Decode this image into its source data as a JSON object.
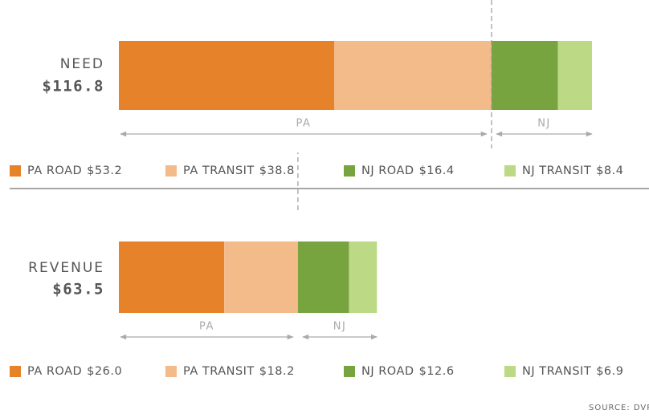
{
  "chart_data": [
    {
      "type": "stacked-bar",
      "title": "NEED",
      "total": 116.8,
      "total_label": "$116.8",
      "groups": [
        "PA",
        "NJ"
      ],
      "series": [
        {
          "name": "PA ROAD",
          "color": "#e5822a",
          "values": [
            53.2
          ],
          "value_labels": [
            "$53.2"
          ]
        },
        {
          "name": "PA TRANSIT",
          "color": "#f4bb8a",
          "values": [
            38.8
          ],
          "value_labels": [
            "$38.8"
          ]
        },
        {
          "name": "NJ ROAD",
          "color": "#78a440",
          "values": [
            16.4
          ],
          "value_labels": [
            "$16.4"
          ]
        },
        {
          "name": "NJ TRANSIT",
          "color": "#bcd985",
          "values": [
            8.4
          ],
          "value_labels": [
            "$8.4"
          ]
        }
      ]
    },
    {
      "type": "stacked-bar",
      "title": "REVENUE",
      "total": 63.5,
      "total_label": "$63.5",
      "groups": [
        "PA",
        "NJ"
      ],
      "series": [
        {
          "name": "PA ROAD",
          "color": "#e5822a",
          "values": [
            26.0
          ],
          "value_labels": [
            "$26.0"
          ]
        },
        {
          "name": "PA TRANSIT",
          "color": "#f4bb8a",
          "values": [
            18.2
          ],
          "value_labels": [
            "$18.2"
          ]
        },
        {
          "name": "NJ ROAD",
          "color": "#78a440",
          "values": [
            12.6
          ],
          "value_labels": [
            "$12.6"
          ]
        },
        {
          "name": "NJ TRANSIT",
          "color": "#bcd985",
          "values": [
            6.9
          ],
          "value_labels": [
            "$6.9"
          ]
        }
      ]
    }
  ],
  "source": "SOURCE: DVRPC"
}
